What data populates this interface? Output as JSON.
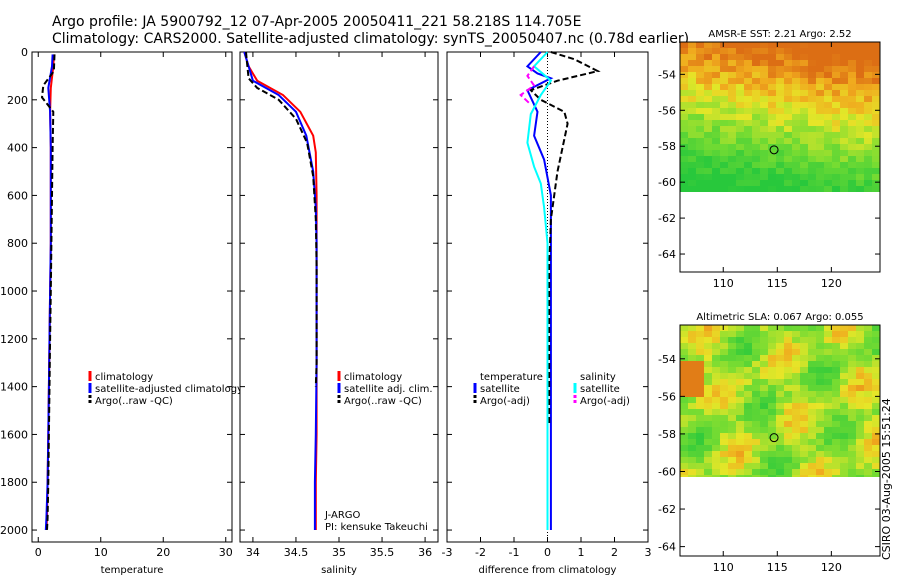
{
  "header": {
    "line1": "Argo profile: JA 5900792_12 07-Apr-2005 20050411_221 58.218S 114.705E",
    "line2": "Climatology: CARS2000. Satellite-adjusted climatology: synTS_20050407.nc (0.78d earlier)"
  },
  "colors": {
    "climatology": "#ff0000",
    "satellite": "#0000ff",
    "argo": "#000000",
    "sat_salt": "#00ffff",
    "argo_salt": "#ff00ff"
  },
  "chart_data": [
    {
      "type": "line",
      "id": "temperature",
      "xlabel": "temperature",
      "xlim": [
        -1,
        31
      ],
      "ylim": [
        2050,
        0
      ],
      "xticks": [
        "0",
        "10",
        "20",
        "30"
      ],
      "xtick_values": [
        0,
        10,
        20,
        30
      ],
      "yticks": [
        "0",
        "200",
        "400",
        "600",
        "800",
        "1000",
        "1200",
        "1400",
        "1600",
        "1800",
        "2000"
      ],
      "ytick_values": [
        0,
        200,
        400,
        600,
        800,
        1000,
        1200,
        1400,
        1600,
        1800,
        2000
      ],
      "legend": [
        "climatology",
        "satellite-adjusted climatology",
        "Argo(..raw -QC)"
      ],
      "series": [
        {
          "name": "climatology",
          "color": "#ff0000",
          "dash": false,
          "x": [
            2.5,
            2.4,
            2.0,
            1.9,
            2.0,
            2.0,
            2.0,
            1.9,
            1.8,
            1.7,
            1.6,
            1.5,
            1.4,
            1.3
          ],
          "y": [
            10,
            60,
            150,
            250,
            400,
            600,
            800,
            1000,
            1200,
            1400,
            1600,
            1800,
            1950,
            2000
          ]
        },
        {
          "name": "satellite",
          "color": "#0000ff",
          "dash": false,
          "x": [
            2.3,
            2.2,
            1.6,
            1.9,
            2.0,
            2.0,
            2.0,
            1.9,
            1.8,
            1.7,
            1.6,
            1.5,
            1.3,
            1.2
          ],
          "y": [
            10,
            60,
            150,
            250,
            400,
            600,
            800,
            1000,
            1200,
            1400,
            1600,
            1800,
            1950,
            2000
          ]
        },
        {
          "name": "Argo",
          "color": "#000000",
          "dash": true,
          "x": [
            2.6,
            2.5,
            0.8,
            0.6,
            2.4,
            2.3,
            2.2,
            2.1,
            2.0,
            1.9,
            1.8,
            1.7,
            1.6,
            1.5,
            1.4
          ],
          "y": [
            10,
            80,
            140,
            190,
            250,
            400,
            600,
            800,
            1000,
            1200,
            1400,
            1600,
            1800,
            1950,
            2000
          ]
        }
      ]
    },
    {
      "type": "line",
      "id": "salinity",
      "xlabel": "salinity",
      "xlim": [
        33.85,
        36.15
      ],
      "ylim": [
        2050,
        0
      ],
      "xticks": [
        "34",
        "34.5",
        "35",
        "35.5",
        "36"
      ],
      "xtick_values": [
        34,
        34.5,
        35,
        35.5,
        36
      ],
      "legend": [
        "climatology",
        "satellite adj. clim.",
        "Argo(..raw -QC)"
      ],
      "annotations": [
        "J-ARGO",
        "PI: kensuke Takeuchi"
      ],
      "series": [
        {
          "name": "climatology",
          "color": "#ff0000",
          "dash": false,
          "x": [
            33.9,
            33.95,
            34.05,
            34.35,
            34.55,
            34.7,
            34.73,
            34.74,
            34.74,
            34.74,
            34.74,
            34.74,
            34.73,
            34.73
          ],
          "y": [
            0,
            60,
            120,
            180,
            250,
            350,
            420,
            600,
            800,
            1000,
            1300,
            1600,
            1800,
            2000
          ]
        },
        {
          "name": "satellite",
          "color": "#0000ff",
          "dash": false,
          "x": [
            33.9,
            33.95,
            34.0,
            34.3,
            34.5,
            34.62,
            34.7,
            34.73,
            34.74,
            34.74,
            34.74,
            34.73,
            34.72,
            34.72
          ],
          "y": [
            0,
            60,
            120,
            180,
            250,
            350,
            500,
            650,
            800,
            1000,
            1300,
            1600,
            1800,
            2000
          ]
        },
        {
          "name": "Argo",
          "color": "#000000",
          "dash": true,
          "x": [
            33.92,
            33.93,
            33.95,
            34.05,
            34.3,
            34.5,
            34.63,
            34.7,
            34.73,
            34.74,
            34.74,
            34.74,
            34.73
          ],
          "y": [
            0,
            40,
            110,
            150,
            200,
            280,
            380,
            520,
            700,
            900,
            1100,
            1300,
            1400
          ]
        }
      ]
    },
    {
      "type": "line",
      "id": "difference",
      "xlabel": "difference from climatology",
      "xlim": [
        -3,
        3
      ],
      "ylim": [
        2050,
        0
      ],
      "xticks": [
        "-3",
        "-2",
        "-1",
        "0",
        "1",
        "2",
        "3"
      ],
      "xtick_values": [
        -3,
        -2,
        -1,
        0,
        1,
        2,
        3
      ],
      "legend_left": [
        "temperature",
        "satellite",
        "Argo(-adj)"
      ],
      "legend_right": [
        "salinity",
        "satellite",
        "Argo(-adj)"
      ],
      "series": [
        {
          "name": "temperature satellite",
          "color": "#0000ff",
          "dash": false,
          "x": [
            -0.2,
            -0.6,
            -0.3,
            0.1,
            -0.6,
            -0.3,
            -0.4,
            -0.1,
            0.1,
            0.1,
            0.1,
            0.1,
            0.1,
            0.1,
            0.1
          ],
          "y": [
            0,
            60,
            90,
            110,
            160,
            250,
            350,
            450,
            600,
            800,
            1000,
            1300,
            1600,
            1800,
            2000
          ]
        },
        {
          "name": "temperature Argo",
          "color": "#000000",
          "dash": true,
          "x": [
            0.1,
            0.8,
            1.5,
            0.3,
            -0.5,
            -0.2,
            0.5,
            0.6,
            0.3,
            0.1,
            0.05,
            0.05,
            0.05
          ],
          "y": [
            0,
            30,
            80,
            120,
            160,
            200,
            250,
            300,
            500,
            700,
            900,
            1200,
            1560
          ]
        },
        {
          "name": "salinity satellite",
          "color": "#00ffff",
          "dash": false,
          "x": [
            0.0,
            -0.4,
            0.1,
            -0.2,
            -0.5,
            -0.6,
            -0.4,
            -0.2,
            -0.1,
            0.0,
            0.0,
            0.0,
            0.0,
            0.0
          ],
          "y": [
            0,
            60,
            120,
            180,
            260,
            380,
            480,
            550,
            650,
            800,
            1000,
            1300,
            1600,
            2000
          ]
        },
        {
          "name": "salinity Argo",
          "color": "#ff00ff",
          "dash": true,
          "x": [
            -0.4,
            -0.6,
            -0.4,
            -0.8,
            -0.5
          ],
          "y": [
            60,
            100,
            140,
            180,
            220
          ]
        }
      ]
    },
    {
      "type": "heatmap",
      "id": "sst_map",
      "title": "AMSR-E SST: 2.21 Argo: 2.52",
      "xlim": [
        106,
        124.5
      ],
      "ylim": [
        -65,
        -52.2
      ],
      "xticks": [
        "110",
        "115",
        "120"
      ],
      "xtick_values": [
        110,
        115,
        120
      ],
      "yticks": [
        "-54",
        "-56",
        "-58",
        "-60",
        "-62",
        "-64"
      ],
      "ytick_values": [
        -54,
        -56,
        -58,
        -60,
        -62,
        -64
      ],
      "data_extent_lat": [
        -60,
        -52.2
      ],
      "marker": {
        "lon": 114.7,
        "lat": -58.2
      }
    },
    {
      "type": "heatmap",
      "id": "sla_map",
      "title": "Altimetric SLA: 0.067 Argo: 0.055",
      "xlim": [
        106,
        124.5
      ],
      "ylim": [
        -64.5,
        -52.2
      ],
      "xticks": [
        "110",
        "115",
        "120"
      ],
      "xtick_values": [
        110,
        115,
        120
      ],
      "yticks": [
        "-54",
        "-56",
        "-58",
        "-60",
        "-62",
        "-64"
      ],
      "ytick_values": [
        -54,
        -56,
        -58,
        -60,
        -62,
        -64
      ],
      "data_extent_lat": [
        -60,
        -52.2
      ],
      "marker": {
        "lon": 114.7,
        "lat": -58.2
      }
    }
  ],
  "footer": {
    "stamp": "CSIRO 03-Aug-2005 15:51:24"
  }
}
